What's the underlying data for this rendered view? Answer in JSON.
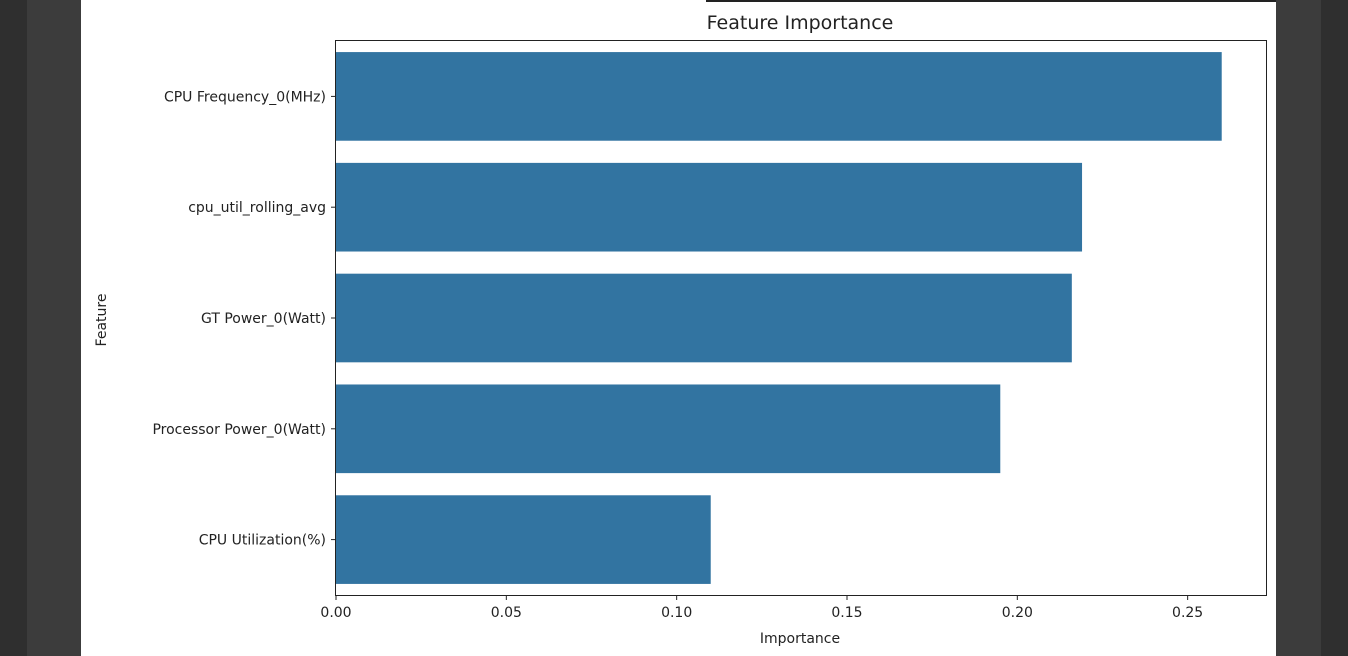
{
  "chart_data": {
    "type": "bar",
    "orientation": "horizontal",
    "title": "Feature Importance",
    "xlabel": "Importance",
    "ylabel": "Feature",
    "categories": [
      "CPU Frequency_0(MHz)",
      "cpu_util_rolling_avg",
      "GT Power_0(Watt)",
      "Processor Power_0(Watt)",
      "CPU Utilization(%)"
    ],
    "values": [
      0.26,
      0.219,
      0.216,
      0.195,
      0.11
    ],
    "xlim": [
      0,
      0.273
    ],
    "xticks": [
      "0.00",
      "0.05",
      "0.10",
      "0.15",
      "0.20",
      "0.25"
    ],
    "grid": false,
    "bar_color": "#3274a1"
  }
}
